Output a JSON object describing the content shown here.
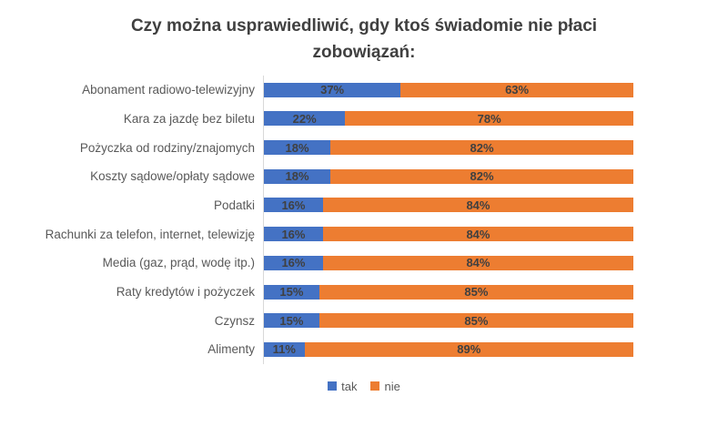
{
  "chart_data": {
    "type": "bar",
    "orientation": "horizontal",
    "stacked": true,
    "title": "Czy można usprawiedliwić, gdy ktoś świadomie nie płaci zobowiązań:",
    "categories": [
      "Abonament radiowo-telewizyjny",
      "Kara za jazdę bez biletu",
      "Pożyczka od rodziny/znajomych",
      "Koszty sądowe/opłaty sądowe",
      "Podatki",
      "Rachunki za telefon, internet, telewizję",
      "Media (gaz, prąd, wodę itp.)",
      "Raty kredytów i pożyczek",
      "Czynsz",
      "Alimenty"
    ],
    "series": [
      {
        "name": "tak",
        "color": "#4472C4",
        "values": [
          37,
          22,
          18,
          18,
          16,
          16,
          16,
          15,
          15,
          11
        ]
      },
      {
        "name": "nie",
        "color": "#ED7D31",
        "values": [
          63,
          78,
          82,
          82,
          84,
          84,
          84,
          85,
          85,
          89
        ]
      }
    ],
    "value_suffix": "%",
    "xlim": [
      0,
      100
    ],
    "grid": false,
    "data_labels": true,
    "legend_position": "bottom",
    "axis_line_color": "#D9D9D9"
  }
}
